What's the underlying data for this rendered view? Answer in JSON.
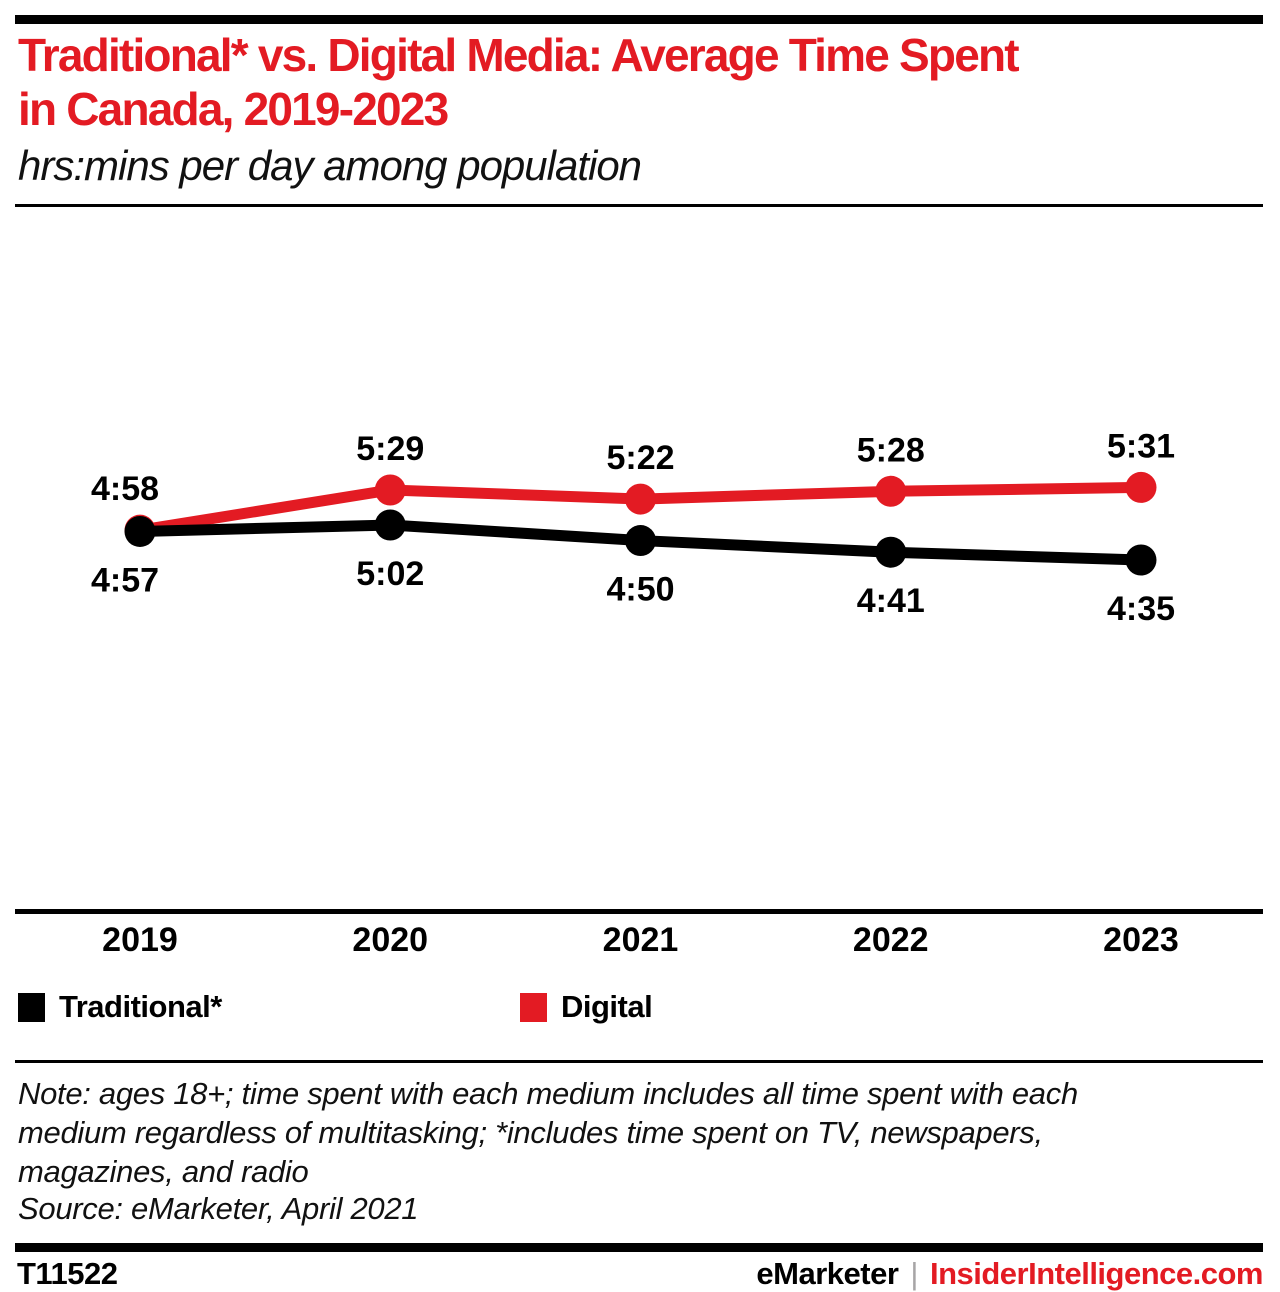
{
  "header": {
    "title": "Traditional* vs. Digital Media: Average Time Spent\nin Canada, 2019-2023",
    "subtitle": "hrs:mins per day among population"
  },
  "chart_data": {
    "type": "line",
    "title": "Traditional* vs. Digital Media: Average Time Spent in Canada, 2019-2023",
    "subtitle": "hrs:mins per day among population",
    "unit": "hrs:mins per day",
    "categories": [
      "2019",
      "2020",
      "2021",
      "2022",
      "2023"
    ],
    "series": [
      {
        "name": "Traditional*",
        "color": "#000000",
        "label_position": "below",
        "values": [
          "4:57",
          "5:02",
          "4:50",
          "4:41",
          "4:35"
        ]
      },
      {
        "name": "Digital",
        "color": "#e31b23",
        "label_position": "above",
        "values": [
          "4:58",
          "5:29",
          "5:22",
          "5:28",
          "5:31"
        ]
      }
    ],
    "grid": false,
    "legend_position": "bottom-left",
    "x_axis_line": true
  },
  "note": {
    "text": "Note: ages 18+; time spent with each medium includes all time spent with each\nmedium regardless of multitasking; *includes time spent on TV, newspapers,\nmagazines, and radio",
    "source": "Source: eMarketer, April 2021"
  },
  "footer": {
    "chart_id": "T11522",
    "brand": "eMarketer",
    "separator": "|",
    "site": "InsiderIntelligence.com"
  },
  "colors": {
    "accent_red": "#e31b23",
    "black": "#000000",
    "separator_grey": "#a7a5a6"
  }
}
